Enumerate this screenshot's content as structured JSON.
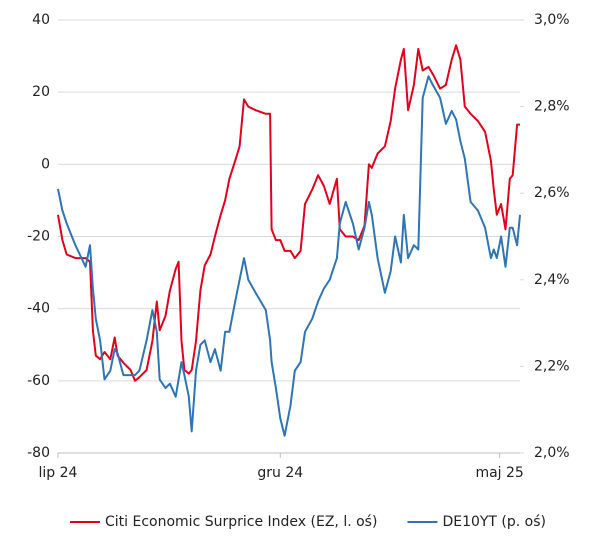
{
  "chart_data": {
    "type": "line",
    "x": [
      0,
      3,
      6,
      12,
      19,
      22,
      24,
      26,
      29,
      32,
      36,
      39,
      41,
      45,
      50,
      53,
      56,
      61,
      65,
      68,
      70,
      74,
      77,
      81,
      83,
      85,
      87,
      90,
      92,
      95,
      98,
      101,
      105,
      108,
      112,
      115,
      118,
      122,
      125,
      128,
      131,
      136,
      143,
      146,
      147,
      150,
      153,
      156,
      160,
      163,
      167,
      170,
      175,
      179,
      183,
      187,
      192,
      194,
      198,
      203,
      207,
      211,
      214,
      216,
      220,
      225,
      229,
      232,
      236,
      238,
      241,
      245,
      248,
      251,
      255,
      258,
      263,
      267,
      271,
      274,
      277,
      280,
      284,
      289,
      294,
      298,
      300,
      302,
      305,
      308,
      311,
      313,
      316,
      318
    ],
    "xlim": [
      0,
      318
    ],
    "xticks": [
      {
        "value": 0,
        "label": "lip 24"
      },
      {
        "value": 153,
        "label": "gru 24"
      },
      {
        "value": 304,
        "label": "maj 25"
      }
    ],
    "ylim": [
      -80,
      40
    ],
    "yticks": [
      -80,
      -60,
      -40,
      -20,
      0,
      20,
      40
    ],
    "y2lim": [
      2.0,
      3.0
    ],
    "y2ticks": [
      {
        "value": 2.0,
        "label": "2,0%"
      },
      {
        "value": 2.2,
        "label": "2,2%"
      },
      {
        "value": 2.4,
        "label": "2,4%"
      },
      {
        "value": 2.6,
        "label": "2,6%"
      },
      {
        "value": 2.8,
        "label": "2,8%"
      },
      {
        "value": 3.0,
        "label": "3,0%"
      }
    ],
    "grid": true,
    "legend": "bottom",
    "series": [
      {
        "name": "Citi Economic Surprice Index (EZ, l. oś)",
        "color": "#e3001b",
        "values": [
          -14,
          -21,
          -25,
          -26,
          -26,
          -27,
          -46,
          -53,
          -54,
          -52,
          -54,
          -48,
          -53,
          -55,
          -57,
          -60,
          -59,
          -57,
          -49,
          -38,
          -46,
          -42,
          -35,
          -29,
          -27,
          -49,
          -57,
          -58,
          -57,
          -49,
          -35,
          -28,
          -25,
          -20,
          -14,
          -10,
          -4,
          1,
          5,
          18,
          16,
          15,
          14,
          14,
          -18,
          -21,
          -21,
          -24,
          -24,
          -26,
          -24,
          -11,
          -7,
          -3,
          -6,
          -11,
          -4,
          -18,
          -20,
          -20,
          -21,
          -17,
          0,
          -1,
          3,
          5,
          12,
          21,
          29,
          32,
          15,
          22,
          32,
          26,
          27,
          25,
          21,
          22,
          29,
          33,
          29,
          16,
          14,
          12,
          9,
          1,
          -7,
          -14,
          -11,
          -18,
          -4,
          -3,
          11,
          11
        ]
      },
      {
        "name": "DE10YT (p. oś)",
        "color": "#2e75b6",
        "axis": "y2",
        "values": [
          2.61,
          2.56,
          2.53,
          2.48,
          2.43,
          2.48,
          2.38,
          2.31,
          2.26,
          2.17,
          2.19,
          2.24,
          2.23,
          2.18,
          2.18,
          2.18,
          2.19,
          2.26,
          2.33,
          2.28,
          2.17,
          2.15,
          2.16,
          2.13,
          2.17,
          2.21,
          2.18,
          2.13,
          2.05,
          2.19,
          2.25,
          2.26,
          2.21,
          2.24,
          2.19,
          2.28,
          2.28,
          2.35,
          2.4,
          2.45,
          2.4,
          2.37,
          2.33,
          2.26,
          2.21,
          2.15,
          2.08,
          2.04,
          2.11,
          2.19,
          2.21,
          2.28,
          2.31,
          2.35,
          2.38,
          2.4,
          2.45,
          2.53,
          2.58,
          2.53,
          2.47,
          2.52,
          2.58,
          2.55,
          2.45,
          2.37,
          2.42,
          2.5,
          2.44,
          2.55,
          2.45,
          2.48,
          2.47,
          2.82,
          2.87,
          2.85,
          2.82,
          2.76,
          2.79,
          2.77,
          2.72,
          2.68,
          2.58,
          2.56,
          2.52,
          2.45,
          2.47,
          2.45,
          2.5,
          2.43,
          2.52,
          2.52,
          2.48,
          2.55
        ]
      }
    ]
  }
}
